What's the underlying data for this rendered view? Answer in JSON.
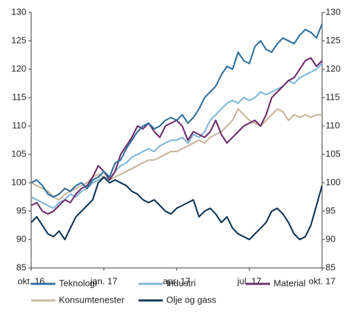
{
  "chart_data": {
    "type": "line",
    "categories": [
      "okt. 16",
      null,
      null,
      null,
      null,
      null,
      null,
      null,
      null,
      null,
      null,
      null,
      null,
      "jan. 17",
      null,
      null,
      null,
      null,
      null,
      null,
      null,
      null,
      null,
      null,
      null,
      null,
      "apr. 17",
      null,
      null,
      null,
      null,
      null,
      null,
      null,
      null,
      null,
      null,
      null,
      null,
      "jul. 17",
      null,
      null,
      null,
      null,
      null,
      null,
      null,
      null,
      null,
      null,
      null,
      null,
      "okt. 17"
    ],
    "series": [
      {
        "name": "Teknologi",
        "color": "#2e6f9e",
        "values": [
          100,
          100.5,
          99.5,
          98,
          97.5,
          98,
          99,
          98.5,
          99.5,
          100,
          99,
          100.5,
          101,
          102,
          101,
          103.5,
          104,
          106,
          107.5,
          109,
          110,
          110.5,
          109.5,
          110,
          111,
          111.5,
          111,
          112,
          110.5,
          111.5,
          113,
          115,
          116,
          117,
          119,
          120.5,
          120,
          123,
          121.5,
          121,
          124,
          125,
          123.5,
          123,
          124.5,
          125.5,
          125,
          124.5,
          126,
          127,
          126.5,
          125.5,
          128
        ]
      },
      {
        "name": "Industri",
        "color": "#7fb6d9",
        "values": [
          97.5,
          97,
          96.5,
          96,
          95.5,
          96.5,
          97,
          98,
          97.5,
          98.5,
          99,
          100,
          100.5,
          101,
          100.5,
          102,
          103,
          103.5,
          104.5,
          105,
          105.5,
          106,
          105.5,
          106.5,
          107,
          107.5,
          107.5,
          108,
          107,
          108.5,
          108,
          109,
          111,
          112,
          113,
          114,
          114.5,
          114,
          115,
          114.5,
          115,
          116,
          115.5,
          116,
          116.5,
          117,
          118,
          117.5,
          118.5,
          119,
          119.5,
          120,
          121
        ]
      },
      {
        "name": "Material",
        "color": "#6b2d6b",
        "values": [
          96,
          96.5,
          95,
          94.5,
          95,
          96,
          97,
          96.5,
          98,
          99,
          99.5,
          101,
          103,
          102,
          100.5,
          102,
          105,
          106.5,
          108,
          110,
          109.5,
          110.5,
          109,
          108,
          110,
          110.5,
          111,
          110,
          107.5,
          109,
          108.5,
          108,
          109,
          111,
          108.5,
          107,
          108,
          109,
          110,
          110.5,
          111,
          110,
          112,
          115,
          116,
          117,
          118,
          118.5,
          120,
          121.5,
          122,
          120.5,
          121.5
        ]
      },
      {
        "name": "Konsumtenester",
        "color": "#c6b798",
        "values": [
          100,
          99.5,
          99,
          98.5,
          97.5,
          97,
          98,
          98.5,
          99,
          99.5,
          100,
          101,
          101.5,
          101,
          100.5,
          101,
          101.5,
          102,
          102.5,
          103,
          103.5,
          104,
          104,
          104.5,
          105,
          105.5,
          105.5,
          106,
          106.5,
          107,
          107.5,
          107,
          108,
          108.5,
          109,
          110,
          111,
          113,
          112,
          111,
          110.5,
          110,
          111,
          112,
          113,
          112.5,
          111,
          112,
          111.5,
          112,
          111.5,
          112,
          112
        ]
      },
      {
        "name": "Olje og gass",
        "color": "#0e3557",
        "values": [
          93,
          94,
          92.5,
          91,
          90.5,
          91.5,
          90,
          92,
          94,
          95,
          96,
          97,
          100,
          101,
          100,
          100.5,
          100,
          99.5,
          98.5,
          98,
          97,
          96.5,
          97,
          96,
          95,
          94.5,
          95.5,
          96,
          96.5,
          97,
          94,
          95,
          95.5,
          94.5,
          93,
          94,
          92,
          91,
          90.5,
          90,
          91,
          92,
          93,
          95,
          95.5,
          94.5,
          93,
          91,
          90,
          90.5,
          92.5,
          96,
          99.5
        ]
      }
    ],
    "ylim": [
      85,
      130
    ],
    "yticks": [
      85,
      90,
      95,
      100,
      105,
      110,
      115,
      120,
      125,
      130
    ],
    "y2lim": [
      85,
      130
    ],
    "y2ticks": [
      85,
      90,
      95,
      100,
      105,
      110,
      115,
      120,
      125,
      130
    ],
    "grid": false
  }
}
